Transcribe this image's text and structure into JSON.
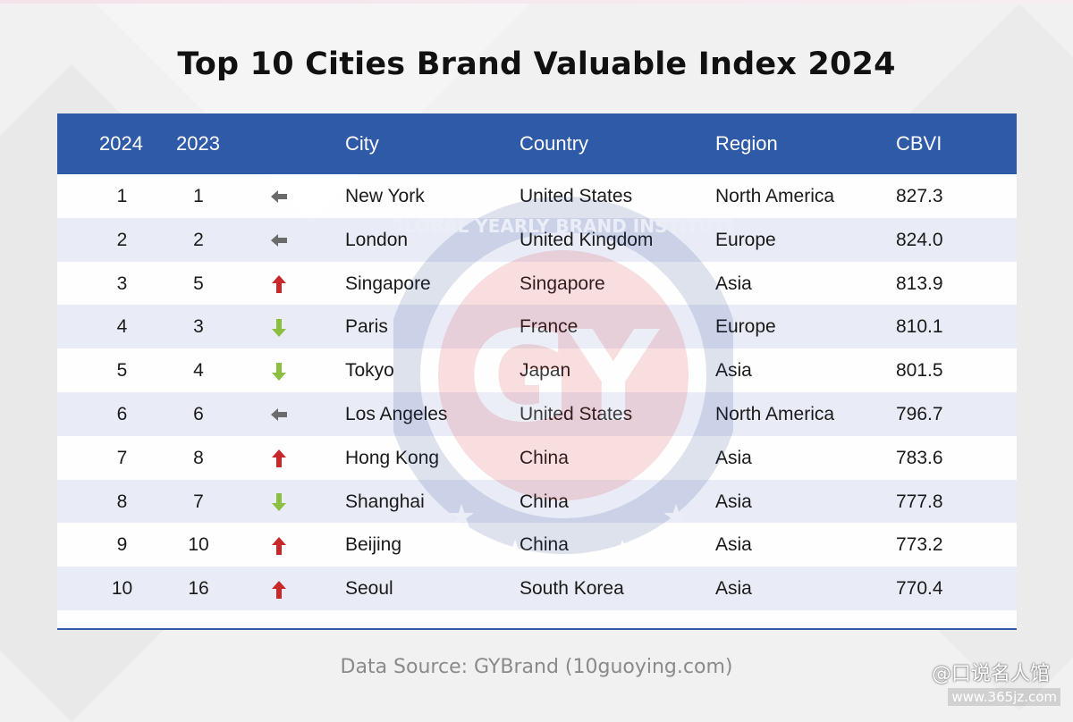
{
  "title": "Top 10 Cities Brand Valuable Index 2024",
  "headers": {
    "rank_2024": "2024",
    "rank_2023": "2023",
    "city": "City",
    "country": "Country",
    "region": "Region",
    "cbvi": "CBVI"
  },
  "rows": [
    {
      "rank": "1",
      "prev": "1",
      "trend": "same",
      "city": "New York",
      "country": "United States",
      "region": "North America",
      "cbvi": "827.3"
    },
    {
      "rank": "2",
      "prev": "2",
      "trend": "same",
      "city": "London",
      "country": "United Kingdom",
      "region": "Europe",
      "cbvi": "824.0"
    },
    {
      "rank": "3",
      "prev": "5",
      "trend": "up",
      "city": "Singapore",
      "country": "Singapore",
      "region": "Asia",
      "cbvi": "813.9"
    },
    {
      "rank": "4",
      "prev": "3",
      "trend": "down",
      "city": "Paris",
      "country": "France",
      "region": "Europe",
      "cbvi": "810.1"
    },
    {
      "rank": "5",
      "prev": "4",
      "trend": "down",
      "city": "Tokyo",
      "country": "Japan",
      "region": "Asia",
      "cbvi": "801.5"
    },
    {
      "rank": "6",
      "prev": "6",
      "trend": "same",
      "city": "Los Angeles",
      "country": "United States",
      "region": "North America",
      "cbvi": "796.7"
    },
    {
      "rank": "7",
      "prev": "8",
      "trend": "up",
      "city": "Hong Kong",
      "country": "China",
      "region": "Asia",
      "cbvi": "783.6"
    },
    {
      "rank": "8",
      "prev": "7",
      "trend": "down",
      "city": "Shanghai",
      "country": "China",
      "region": "Asia",
      "cbvi": "777.8"
    },
    {
      "rank": "9",
      "prev": "10",
      "trend": "up",
      "city": "Beijing",
      "country": "China",
      "region": "Asia",
      "cbvi": "773.2"
    },
    {
      "rank": "10",
      "prev": "16",
      "trend": "up",
      "city": "Seoul",
      "country": "South Korea",
      "region": "Asia",
      "cbvi": "770.4"
    }
  ],
  "source": "Data Source: GYBrand (10guoying.com)",
  "watermark": {
    "logo": "GY",
    "ring_text": "GLOBAL YEARLY BRAND INSTITUTE"
  },
  "site_mark": {
    "name": "@口说名人馆",
    "url": "www.365jz.com"
  },
  "colors": {
    "header_bg": "#2f5aa8",
    "up": "#c8282a",
    "down": "#8cbf3f",
    "same": "#6b6b6b"
  }
}
